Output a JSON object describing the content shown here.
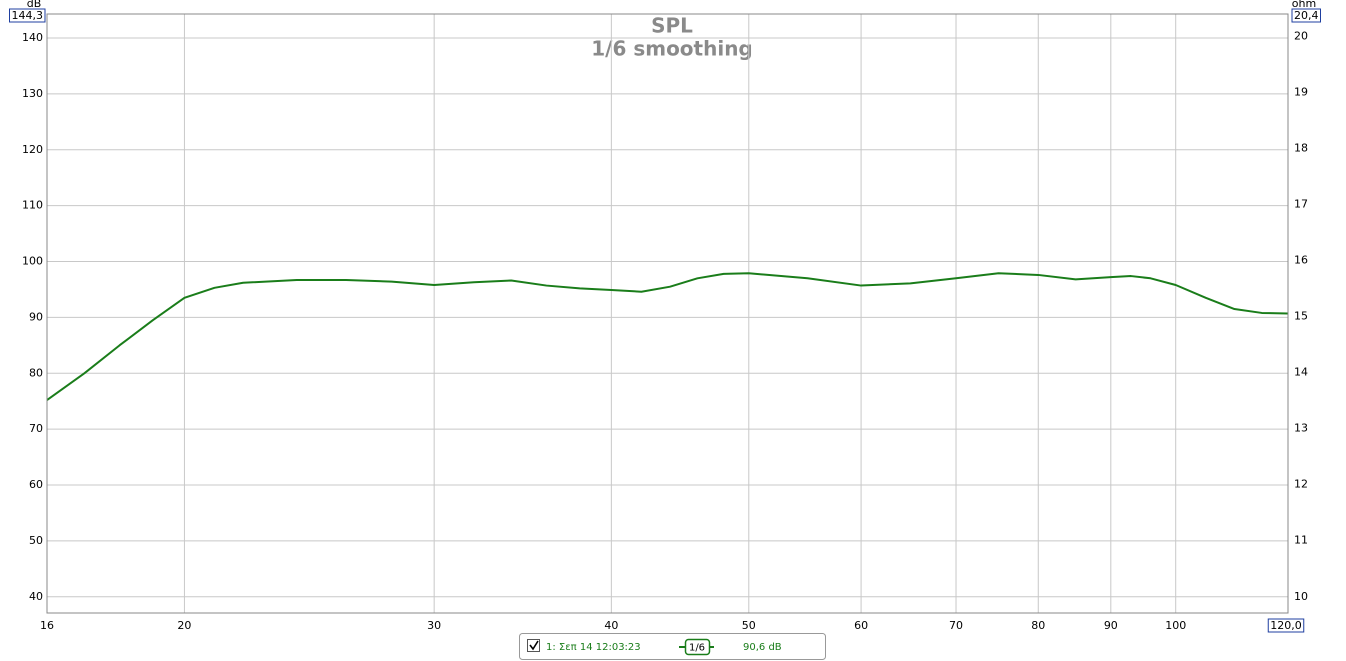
{
  "chart_data": {
    "type": "line",
    "title": "SPL",
    "subtitle": "1/6 smoothing",
    "y_label": "dB",
    "y2_label": "ohm",
    "log_x": true,
    "grid": true,
    "xlim": [
      16,
      120
    ],
    "xticks": [
      16,
      20,
      30,
      40,
      50,
      60,
      70,
      80,
      90,
      100,
      {
        "value": 120,
        "label": "120,0"
      }
    ],
    "ylim": [
      37.1,
      144.3
    ],
    "yticks": [
      40,
      50,
      60,
      70,
      80,
      90,
      100,
      110,
      120,
      130,
      140,
      {
        "value": 144.3,
        "label": "144,3"
      }
    ],
    "y2lim": [
      9.71,
      20.4
    ],
    "y2ticks": [
      10,
      11,
      12,
      13,
      14,
      15,
      16,
      17,
      18,
      19,
      20,
      {
        "value": 20.4,
        "label": "20,4"
      }
    ],
    "x": [
      16,
      17,
      18,
      19,
      20,
      21,
      22,
      24,
      26,
      28,
      30,
      32,
      34,
      36,
      38,
      40,
      42,
      44,
      46,
      48,
      50,
      55,
      60,
      65,
      70,
      75,
      80,
      85,
      90,
      93,
      96,
      100,
      105,
      110,
      115,
      120
    ],
    "series": [
      {
        "name": "1: Σεπ 14 12:03:23",
        "color": "#1a7d1a",
        "values": [
          75.2,
          80,
          85,
          89.5,
          93.5,
          95.3,
          96.2,
          96.7,
          96.7,
          96.4,
          95.8,
          96.3,
          96.6,
          95.7,
          95.2,
          94.9,
          94.6,
          95.5,
          97,
          97.8,
          97.9,
          97,
          95.7,
          96.1,
          97,
          97.9,
          97.6,
          96.8,
          97.2,
          97.4,
          97,
          95.8,
          93.5,
          91.5,
          90.8,
          90.7
        ]
      }
    ],
    "smoothing_badge": "1/6",
    "cursor_value": "90,6 dB"
  }
}
